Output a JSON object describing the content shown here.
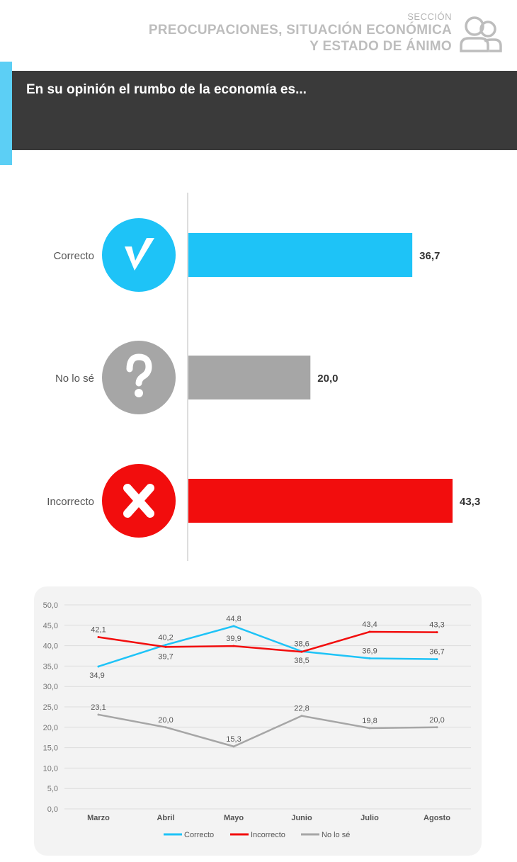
{
  "header": {
    "section_small": "SECCIÓN",
    "section_line1": "PREOCUPACIONES, SITUACIÓN ECONÓMICA",
    "section_line2": "Y ESTADO DE ÁNIMO",
    "icon": "people-icon"
  },
  "question": "En su opinión el rumbo de la economía es...",
  "colors": {
    "correcto": "#1ec3f7",
    "incorrecto": "#f20d0d",
    "nolose": "#a6a6a6",
    "accent": "#5ccff5",
    "banner": "#3a3a3a"
  },
  "chart_data": [
    {
      "type": "bar",
      "orientation": "horizontal",
      "categories": [
        "Correcto",
        "No lo sé",
        "Incorrecto"
      ],
      "values": [
        36.7,
        20.0,
        43.3
      ],
      "value_labels": [
        "36,7",
        "20,0",
        "43,3"
      ],
      "icons": [
        "check-icon",
        "question-icon",
        "x-icon"
      ]
    },
    {
      "type": "line",
      "x": [
        "Marzo",
        "Abril",
        "Mayo",
        "Junio",
        "Julio",
        "Agosto"
      ],
      "ylim": [
        0,
        50
      ],
      "yticks": [
        "0,0",
        "5,0",
        "10,0",
        "15,0",
        "20,0",
        "25,0",
        "30,0",
        "35,0",
        "40,0",
        "45,0",
        "50,0"
      ],
      "grid": true,
      "legend": "bottom",
      "series": [
        {
          "name": "Correcto",
          "values": [
            34.9,
            40.2,
            44.8,
            38.6,
            36.9,
            36.7
          ],
          "labels": [
            "34,9",
            "40,2",
            "44,8",
            "38,6",
            "36,9",
            "36,7"
          ]
        },
        {
          "name": "Incorrecto",
          "values": [
            42.1,
            39.7,
            39.9,
            38.5,
            43.4,
            43.3
          ],
          "labels": [
            "42,1",
            "39,7",
            "39,9",
            "38,5",
            "43,4",
            "43,3"
          ]
        },
        {
          "name": "No lo sé",
          "values": [
            23.1,
            20.0,
            15.3,
            22.8,
            19.8,
            20.0
          ],
          "labels": [
            "23,1",
            "20,0",
            "15,3",
            "22,8",
            "19,8",
            "20,0"
          ]
        }
      ]
    }
  ]
}
